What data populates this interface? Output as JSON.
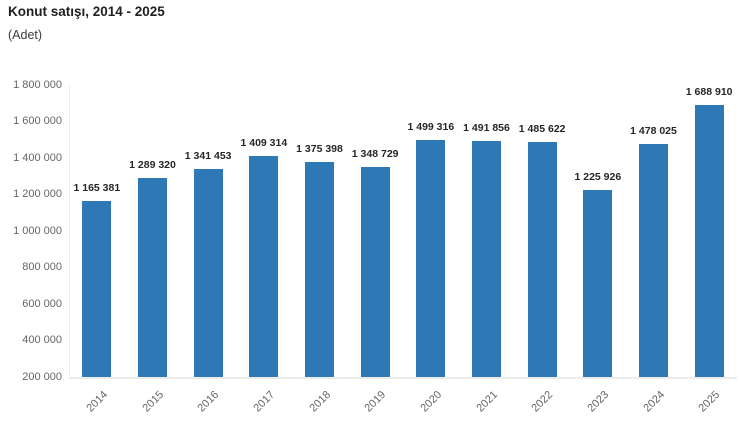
{
  "header": {
    "title": "Konut satışı, 2014 - 2025",
    "subtitle": "(Adet)"
  },
  "colors": {
    "bar": "#2e78b5",
    "axis_line": "#ececec",
    "tick_label": "#666666",
    "value_label": "#262626",
    "title": "#212121",
    "background": "#ffffff"
  },
  "chart_data": {
    "type": "bar",
    "title": "Konut satışı, 2014 - 2025",
    "subtitle": "(Adet)",
    "categories": [
      "2014",
      "2015",
      "2016",
      "2017",
      "2018",
      "2019",
      "2020",
      "2021",
      "2022",
      "2023",
      "2024",
      "2025"
    ],
    "values": [
      1165381,
      1289320,
      1341453,
      1409314,
      1375398,
      1348729,
      1499316,
      1491856,
      1485622,
      1225926,
      1478025,
      1688910
    ],
    "value_labels": [
      "1 165 381",
      "1 289 320",
      "1 341 453",
      "1 409 314",
      "1 375 398",
      "1 348 729",
      "1 499 316",
      "1 491 856",
      "1 485 622",
      "1 225 926",
      "1 478 025",
      "1 688 910"
    ],
    "xlabel": "",
    "ylabel": "",
    "ylim": [
      200000,
      1800000
    ],
    "ytick_step": 200000,
    "ytick_labels": [
      "200 000",
      "400 000",
      "600 000",
      "800 000",
      "1 000 000",
      "1 200 000",
      "1 400 000",
      "1 600 000",
      "1 800 000"
    ],
    "grid": false,
    "legend": false,
    "bar_color": "#2e78b5",
    "x_label_rotation": -45
  }
}
